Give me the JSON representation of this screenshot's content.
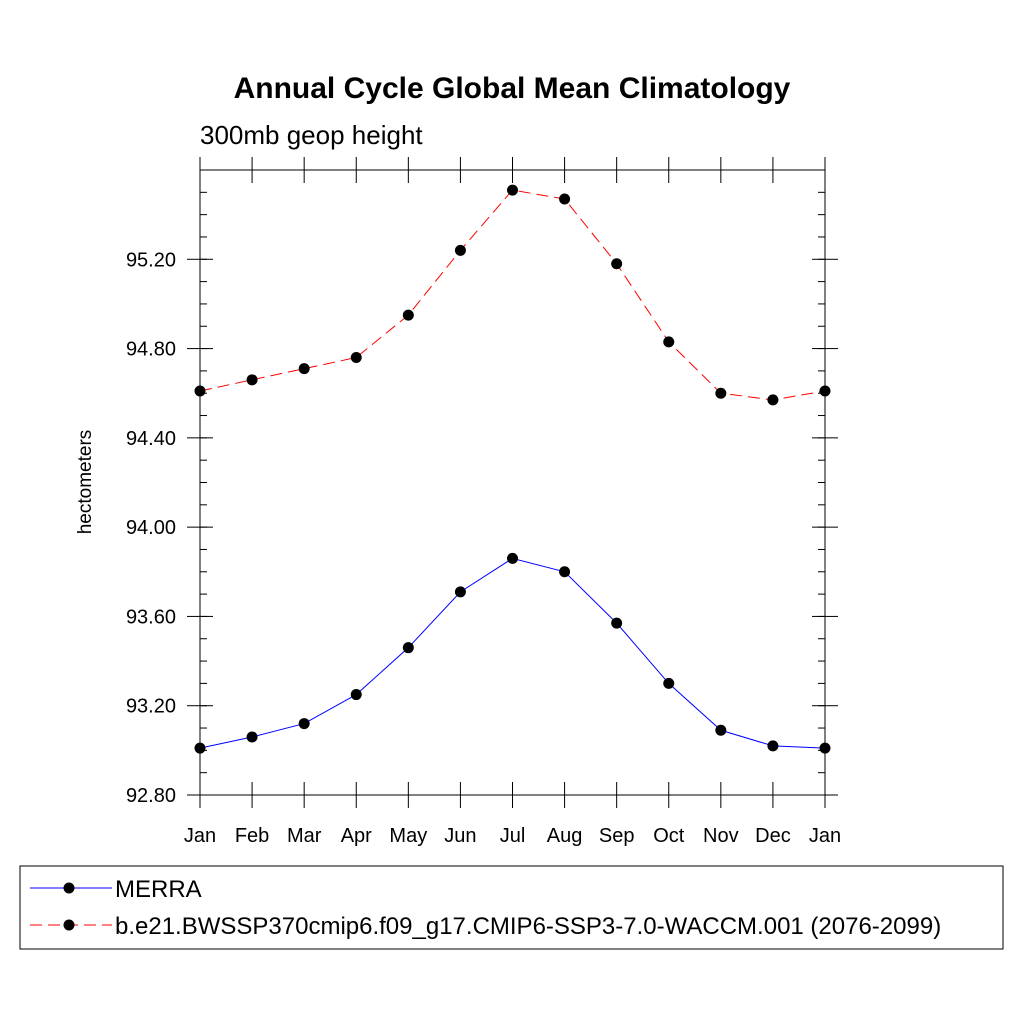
{
  "chart_data": {
    "type": "line",
    "title": "Annual Cycle Global Mean Climatology",
    "subtitle": "300mb geop height",
    "xlabel": "",
    "ylabel": "hectometers",
    "categories": [
      "Jan",
      "Feb",
      "Mar",
      "Apr",
      "May",
      "Jun",
      "Jul",
      "Aug",
      "Sep",
      "Oct",
      "Nov",
      "Dec",
      "Jan"
    ],
    "ylim": [
      92.8,
      95.6
    ],
    "yticks": [
      92.8,
      93.2,
      93.6,
      94.0,
      94.4,
      94.8,
      95.2
    ],
    "ytick_labels": [
      "92.80",
      "93.20",
      "93.60",
      "94.00",
      "94.40",
      "94.80",
      "95.20"
    ],
    "grid": false,
    "legend_position": "bottom",
    "series": [
      {
        "name": "MERRA",
        "color": "#0000ff",
        "dash": "solid",
        "values": [
          93.01,
          93.06,
          93.12,
          93.25,
          93.46,
          93.71,
          93.86,
          93.8,
          93.57,
          93.3,
          93.09,
          93.02,
          93.01
        ]
      },
      {
        "name": "b.e21.BWSSP370cmip6.f09_g17.CMIP6-SSP3-7.0-WACCM.001 (2076-2099)",
        "color": "#ff0000",
        "dash": "dashed",
        "values": [
          94.61,
          94.66,
          94.71,
          94.76,
          94.95,
          95.24,
          95.51,
          95.47,
          95.18,
          94.83,
          94.6,
          94.57,
          94.61
        ]
      }
    ]
  }
}
